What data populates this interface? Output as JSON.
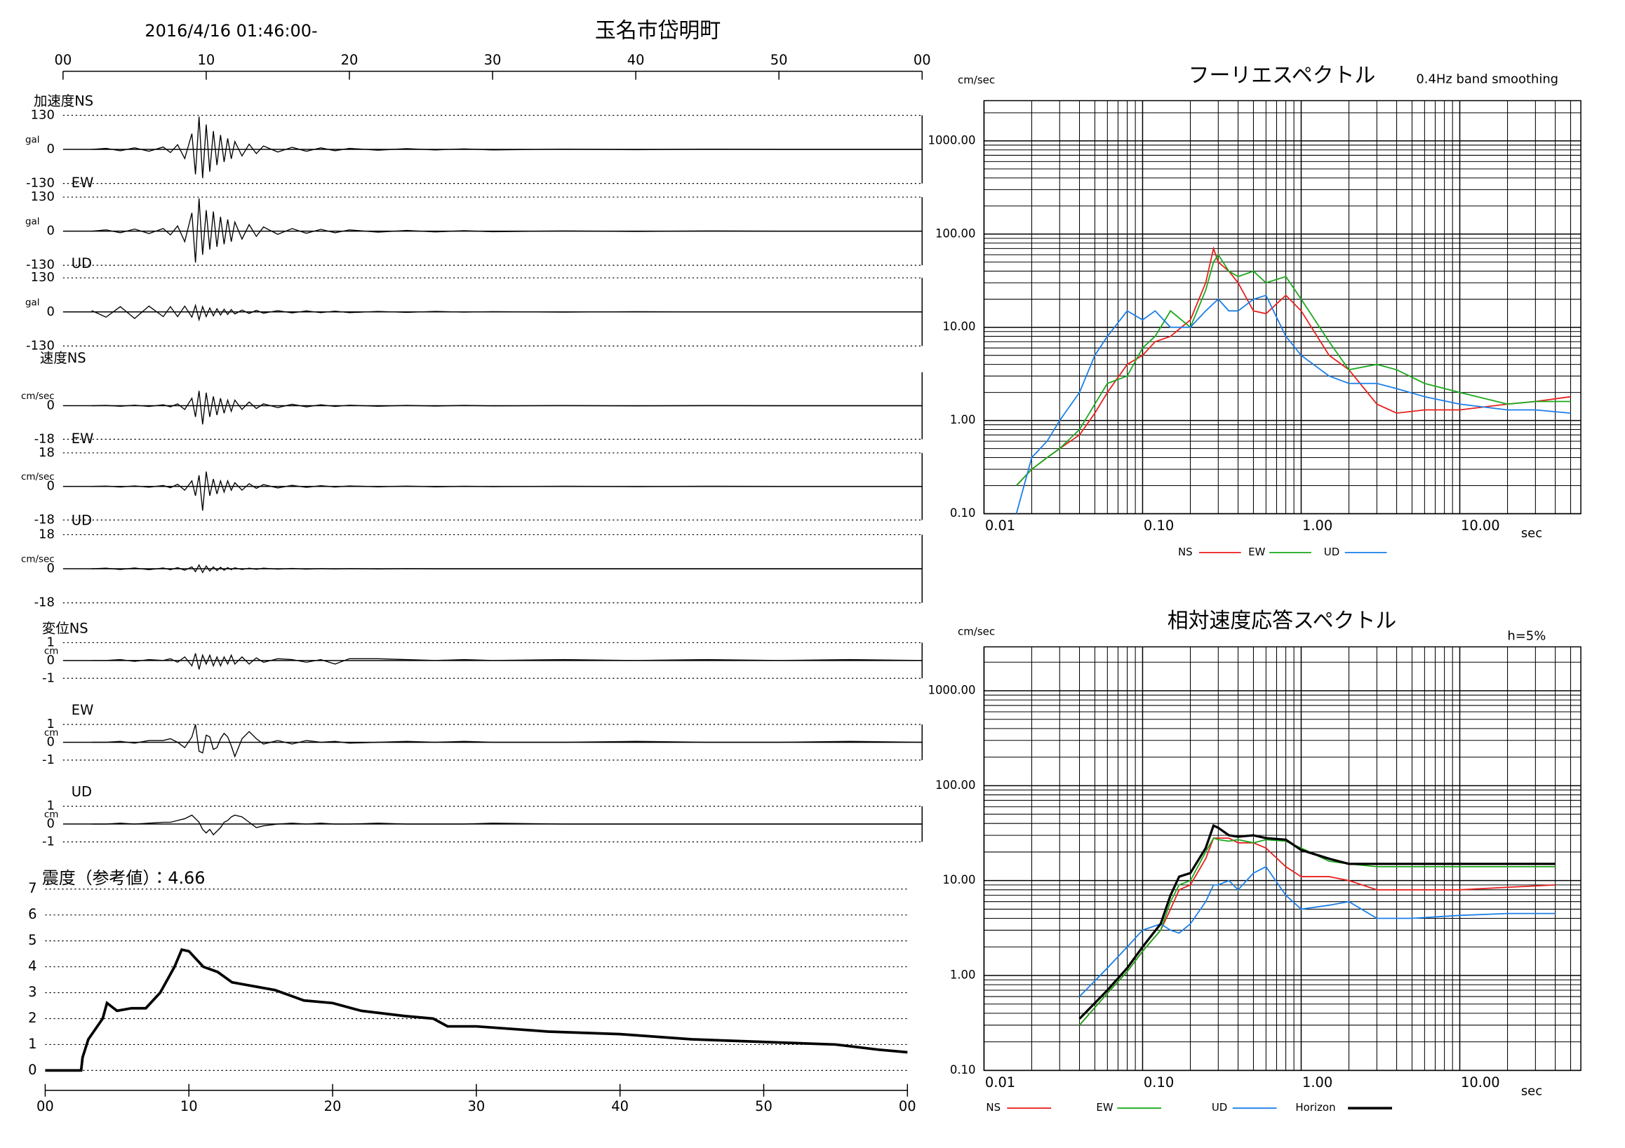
{
  "chart_data": [
    {
      "type": "line",
      "subtitle": "2016/4/16 01:46:00-",
      "title": "玉名市岱明町",
      "xlim": [
        0,
        60
      ],
      "xticks": [
        {
          "value": 0,
          "label": "00"
        },
        10,
        20,
        30,
        40,
        50,
        {
          "value": 60,
          "label": "00"
        }
      ],
      "x": [
        2,
        3,
        4,
        5,
        6,
        7,
        7.5,
        8,
        8.5,
        9,
        9.25,
        9.5,
        9.75,
        10,
        10.25,
        10.5,
        10.75,
        11,
        11.25,
        11.5,
        11.75,
        12,
        12.5,
        13,
        13.5,
        14,
        15,
        16,
        17,
        18,
        19,
        20,
        22,
        24,
        26,
        28,
        30,
        35,
        40,
        45,
        50,
        55,
        60
      ],
      "series": [
        {
          "name": "加速度NS",
          "unit": "gal",
          "ylim": [
            -130,
            130
          ],
          "yticks": [
            130,
            0,
            -130
          ],
          "values": [
            0,
            4,
            -5,
            6,
            -7,
            9,
            -12,
            18,
            -35,
            60,
            -95,
            125,
            -110,
            95,
            -85,
            70,
            -60,
            55,
            -48,
            42,
            -36,
            30,
            -25,
            20,
            -16,
            13,
            -10,
            8,
            -7,
            6,
            -5,
            4,
            -3,
            3,
            -2,
            2,
            -2,
            1,
            -1,
            1,
            0,
            0,
            0
          ]
        },
        {
          "name": "EW",
          "unit": "gal",
          "ylim": [
            -130,
            130
          ],
          "yticks": [
            130,
            0,
            -130
          ],
          "values": [
            0,
            5,
            -6,
            8,
            -9,
            10,
            -14,
            20,
            -40,
            70,
            -120,
            125,
            -90,
            80,
            -70,
            75,
            -60,
            55,
            -50,
            45,
            -40,
            35,
            -30,
            25,
            -20,
            16,
            -12,
            10,
            -8,
            7,
            -6,
            5,
            -4,
            3,
            -3,
            2,
            -2,
            1,
            -1,
            1,
            0,
            0,
            0
          ]
        },
        {
          "name": "UD",
          "unit": "gal",
          "ylim": [
            -130,
            130
          ],
          "yticks": [
            130,
            0,
            -130
          ],
          "values": [
            5,
            -20,
            20,
            -25,
            22,
            -18,
            20,
            -18,
            22,
            -20,
            25,
            -30,
            20,
            -18,
            15,
            -15,
            12,
            -12,
            10,
            -10,
            9,
            -8,
            7,
            -6,
            6,
            -5,
            5,
            -4,
            4,
            -3,
            3,
            -3,
            2,
            -2,
            2,
            -1,
            1,
            -1,
            1,
            0,
            0,
            0,
            0
          ]
        },
        {
          "name": "速度NS",
          "unit": "cm/sec",
          "ylim": [
            -18,
            18
          ],
          "yticks": [
            0,
            -18
          ],
          "values": [
            0,
            0.2,
            -0.3,
            0.3,
            -0.4,
            0.5,
            -0.6,
            1,
            -2,
            4,
            -6,
            8,
            -10,
            7,
            -6,
            5,
            -5,
            4,
            -4,
            3,
            -3,
            3,
            -2,
            2,
            -1.5,
            1,
            -1,
            0.8,
            -0.6,
            0.5,
            -0.4,
            0.3,
            -0.3,
            0.2,
            -0.2,
            0.2,
            -0.1,
            0.1,
            -0.1,
            0.1,
            0,
            0,
            0
          ]
        },
        {
          "name": "EW",
          "unit": "cm/sec",
          "ylim": [
            -18,
            18
          ],
          "yticks": [
            18,
            0,
            -18
          ],
          "values": [
            0,
            0.2,
            -0.3,
            0.3,
            -0.4,
            0.5,
            -0.7,
            1.2,
            -2,
            3,
            -5,
            6,
            -13,
            8,
            -5,
            4,
            -4,
            3,
            -3,
            3,
            -2,
            2,
            -2,
            1.5,
            -1,
            1,
            -0.8,
            0.6,
            -0.5,
            0.4,
            -0.3,
            0.3,
            -0.2,
            0.2,
            -0.2,
            0.1,
            -0.1,
            0.1,
            -0.1,
            0.1,
            0,
            0,
            0
          ]
        },
        {
          "name": "UD",
          "unit": "cm/sec",
          "ylim": [
            -18,
            18
          ],
          "yticks": [
            18,
            0,
            -18
          ],
          "values": [
            0,
            0.3,
            -0.4,
            0.4,
            -0.5,
            0.4,
            -0.5,
            0.6,
            -0.8,
            1,
            -1.5,
            2,
            -2,
            1.5,
            -1.2,
            1,
            -1,
            0.8,
            -0.8,
            0.6,
            -0.5,
            0.5,
            -0.4,
            0.3,
            -0.3,
            0.3,
            -0.2,
            0.2,
            -0.2,
            0.1,
            -0.1,
            0.1,
            -0.1,
            0.1,
            0,
            0,
            0,
            0,
            0,
            0,
            0,
            0,
            0
          ]
        },
        {
          "name": "変位NS",
          "unit": "cm",
          "ylim": [
            -1,
            1
          ],
          "yticks": [
            1,
            0,
            -1
          ],
          "values": [
            0,
            0,
            0.05,
            -0.05,
            0.05,
            0,
            0.1,
            -0.1,
            0.2,
            -0.3,
            0.4,
            -0.5,
            0.3,
            -0.2,
            0.3,
            -0.3,
            0.2,
            -0.3,
            0.2,
            -0.2,
            0.3,
            -0.2,
            0.2,
            -0.2,
            0.15,
            -0.1,
            0.1,
            0.05,
            -0.1,
            0.05,
            -0.2,
            0.1,
            0.1,
            0.05,
            0,
            0.05,
            0,
            0.05,
            0,
            0.05,
            0,
            0.05,
            0
          ]
        },
        {
          "name": "EW",
          "unit": "cm",
          "ylim": [
            -1,
            1
          ],
          "yticks": [
            1,
            0,
            -1
          ],
          "values": [
            0,
            0,
            0.05,
            -0.05,
            0.1,
            0.1,
            0.2,
            0,
            -0.3,
            0.3,
            1,
            -0.5,
            -0.6,
            0.4,
            0.3,
            -0.4,
            -0.3,
            0.2,
            0.5,
            0.3,
            -0.2,
            -0.8,
            0.2,
            0.6,
            0.2,
            -0.1,
            0.1,
            -0.1,
            0.1,
            0,
            0.05,
            -0.05,
            0,
            0.05,
            0,
            0.05,
            0,
            0,
            0.05,
            0,
            0,
            0.05,
            0
          ]
        },
        {
          "name": "UD",
          "unit": "cm",
          "ylim": [
            -1,
            1
          ],
          "yticks": [
            1,
            0,
            -1
          ],
          "values": [
            0,
            0,
            0.05,
            0,
            0.05,
            0.1,
            0.1,
            0.2,
            0.3,
            0.5,
            0.3,
            0.1,
            -0.3,
            -0.5,
            -0.3,
            -0.6,
            -0.4,
            -0.2,
            0.1,
            0.2,
            0.4,
            0.5,
            0.4,
            0.1,
            -0.2,
            -0.1,
            0,
            0.05,
            0,
            0.05,
            0,
            0,
            0.05,
            0,
            0,
            0,
            0.05,
            0,
            0,
            0,
            0,
            0,
            0
          ]
        }
      ]
    },
    {
      "type": "line",
      "title": "震度（参考値）：4.66",
      "color": "#000000",
      "grid": true,
      "xlim": [
        0,
        60
      ],
      "xticks": [
        {
          "value": 0,
          "label": "00"
        },
        10,
        20,
        30,
        40,
        50,
        {
          "value": 60,
          "label": "00"
        }
      ],
      "ylim": [
        0,
        7
      ],
      "yticks": [
        0,
        1,
        2,
        3,
        4,
        5,
        6,
        7
      ],
      "x": [
        0,
        2.5,
        2.6,
        3,
        4,
        4.3,
        5,
        6,
        7,
        8,
        9,
        9.5,
        10,
        11,
        12,
        13,
        14,
        15,
        16,
        17,
        18,
        20,
        22,
        25,
        27,
        28,
        30,
        35,
        40,
        45,
        50,
        55,
        58,
        60
      ],
      "values": [
        0,
        0,
        0.5,
        1.2,
        2,
        2.6,
        2.3,
        2.4,
        2.4,
        3,
        4,
        4.66,
        4.6,
        4,
        3.8,
        3.4,
        3.3,
        3.2,
        3.1,
        2.9,
        2.7,
        2.6,
        2.3,
        2.1,
        2,
        1.7,
        1.7,
        1.5,
        1.4,
        1.2,
        1.1,
        1,
        0.8,
        0.7
      ]
    },
    {
      "type": "line",
      "title": "フーリエスペクトル",
      "subtitle": "0.4Hz band smoothing",
      "y_label": "cm/sec",
      "x_label": "sec",
      "log_x": true,
      "log_y": true,
      "grid": true,
      "xlim": [
        0.01,
        58
      ],
      "ylim": [
        0.1,
        2700
      ],
      "xticks": [
        {
          "value": 0.01,
          "label": "0.01"
        },
        {
          "value": 0.1,
          "label": "0.10"
        },
        {
          "value": 1,
          "label": "1.00"
        },
        {
          "value": 10,
          "label": "10.00"
        }
      ],
      "yticks": [
        {
          "value": 0.1,
          "label": "0.10"
        },
        {
          "value": 1,
          "label": "1.00"
        },
        {
          "value": 10,
          "label": "10.00"
        },
        {
          "value": 100,
          "label": "100.00"
        },
        {
          "value": 1000,
          "label": "1000.00"
        }
      ],
      "x": [
        0.016,
        0.02,
        0.025,
        0.03,
        0.04,
        0.05,
        0.06,
        0.08,
        0.1,
        0.12,
        0.15,
        0.2,
        0.25,
        0.28,
        0.3,
        0.35,
        0.4,
        0.5,
        0.6,
        0.8,
        1.0,
        1.5,
        2,
        3,
        4,
        6,
        10,
        20,
        30,
        50
      ],
      "series": [
        {
          "name": "NS",
          "color": "#e8201c",
          "values": [
            0.2,
            0.3,
            0.4,
            0.5,
            0.7,
            1.2,
            2,
            4,
            5,
            7,
            8,
            12,
            30,
            70,
            50,
            40,
            30,
            15,
            14,
            22,
            15,
            5,
            3.5,
            1.5,
            1.2,
            1.3,
            1.3,
            1.5,
            1.6,
            1.8
          ]
        },
        {
          "name": "EW",
          "color": "#1aa81a",
          "values": [
            0.2,
            0.3,
            0.4,
            0.5,
            0.8,
            1.5,
            2.5,
            3,
            6,
            8,
            15,
            10,
            25,
            50,
            60,
            40,
            35,
            40,
            30,
            35,
            20,
            7,
            3.5,
            4,
            3.5,
            2.5,
            2,
            1.5,
            1.6,
            1.6
          ]
        },
        {
          "name": "UD",
          "color": "#1a7fe8",
          "values": [
            0.1,
            0.4,
            0.6,
            1,
            2,
            5,
            8,
            15,
            12,
            15,
            10,
            10,
            15,
            18,
            20,
            15,
            15,
            20,
            22,
            8,
            5,
            3,
            2.5,
            2.5,
            2.2,
            1.8,
            1.5,
            1.3,
            1.3,
            1.2
          ]
        }
      ]
    },
    {
      "type": "line",
      "title": "相対速度応答スペクトル",
      "annotation": "h=5%",
      "y_label": "cm/sec",
      "x_label": "sec",
      "log_x": true,
      "log_y": true,
      "grid": true,
      "xlim": [
        0.01,
        58
      ],
      "ylim": [
        0.1,
        2900
      ],
      "xticks": [
        {
          "value": 0.01,
          "label": "0.01"
        },
        {
          "value": 0.1,
          "label": "0.10"
        },
        {
          "value": 1,
          "label": "1.00"
        },
        {
          "value": 10,
          "label": "10.00"
        }
      ],
      "yticks": [
        {
          "value": 0.1,
          "label": "0.10"
        },
        {
          "value": 1,
          "label": "1.00"
        },
        {
          "value": 10,
          "label": "10.00"
        },
        {
          "value": 100,
          "label": "100.00"
        },
        {
          "value": 1000,
          "label": "1000.00"
        }
      ],
      "x": [
        0.04,
        0.06,
        0.08,
        0.1,
        0.13,
        0.15,
        0.17,
        0.2,
        0.25,
        0.28,
        0.3,
        0.35,
        0.4,
        0.5,
        0.6,
        0.8,
        1,
        1.5,
        2,
        3,
        5,
        10,
        20,
        40
      ],
      "series": [
        {
          "name": "NS",
          "color": "#e8201c",
          "values": [
            0.3,
            0.65,
            1.1,
            1.8,
            3,
            5,
            8,
            9,
            17,
            28,
            28,
            28,
            25,
            25,
            22,
            14,
            11,
            11,
            10,
            8,
            8,
            8,
            8.5,
            9
          ]
        },
        {
          "name": "EW",
          "color": "#1aa81a",
          "values": [
            0.3,
            0.65,
            1.1,
            1.8,
            3,
            6,
            9,
            10,
            20,
            28,
            27,
            26,
            27,
            25,
            27,
            26,
            22,
            16,
            15,
            14,
            14,
            14,
            14,
            14
          ]
        },
        {
          "name": "UD",
          "color": "#1a7fe8",
          "values": [
            0.6,
            1.2,
            2,
            3,
            3.5,
            3,
            2.8,
            3.5,
            6,
            9,
            9,
            10,
            8,
            12,
            14,
            7,
            5,
            5.5,
            6,
            4,
            4,
            4.3,
            4.5,
            4.5
          ]
        },
        {
          "name": "Horizon",
          "color": "#000000",
          "values": [
            0.35,
            0.7,
            1.2,
            2,
            3.5,
            7,
            11,
            12,
            22,
            38,
            36,
            30,
            29,
            30,
            28,
            27,
            21,
            17,
            15,
            15,
            15,
            15,
            15,
            15
          ]
        }
      ]
    }
  ]
}
